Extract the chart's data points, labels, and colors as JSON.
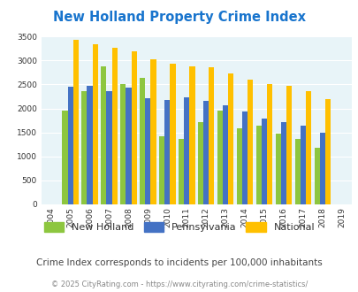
{
  "title": "New Holland Property Crime Index",
  "years": [
    2004,
    2005,
    2006,
    2007,
    2008,
    2009,
    2010,
    2011,
    2012,
    2013,
    2014,
    2015,
    2016,
    2017,
    2018,
    2019
  ],
  "new_holland": [
    0,
    1960,
    2360,
    2870,
    2500,
    2640,
    1420,
    1360,
    1710,
    1960,
    1590,
    1650,
    1470,
    1360,
    1175,
    0
  ],
  "pennsylvania": [
    0,
    2460,
    2470,
    2370,
    2440,
    2210,
    2170,
    2240,
    2160,
    2060,
    1940,
    1790,
    1720,
    1640,
    1490,
    0
  ],
  "national": [
    0,
    3430,
    3330,
    3260,
    3200,
    3020,
    2940,
    2880,
    2860,
    2730,
    2600,
    2500,
    2470,
    2370,
    2200,
    0
  ],
  "color_nh": "#8DC63F",
  "color_pa": "#4472C4",
  "color_nat": "#FFC000",
  "bg_color": "#E8F4F8",
  "ylim": [
    0,
    3500
  ],
  "yticks": [
    0,
    500,
    1000,
    1500,
    2000,
    2500,
    3000,
    3500
  ],
  "subtitle": "Crime Index corresponds to incidents per 100,000 inhabitants",
  "footer": "© 2025 CityRating.com - https://www.cityrating.com/crime-statistics/",
  "title_color": "#1874CD",
  "subtitle_color": "#444444",
  "footer_color": "#888888"
}
